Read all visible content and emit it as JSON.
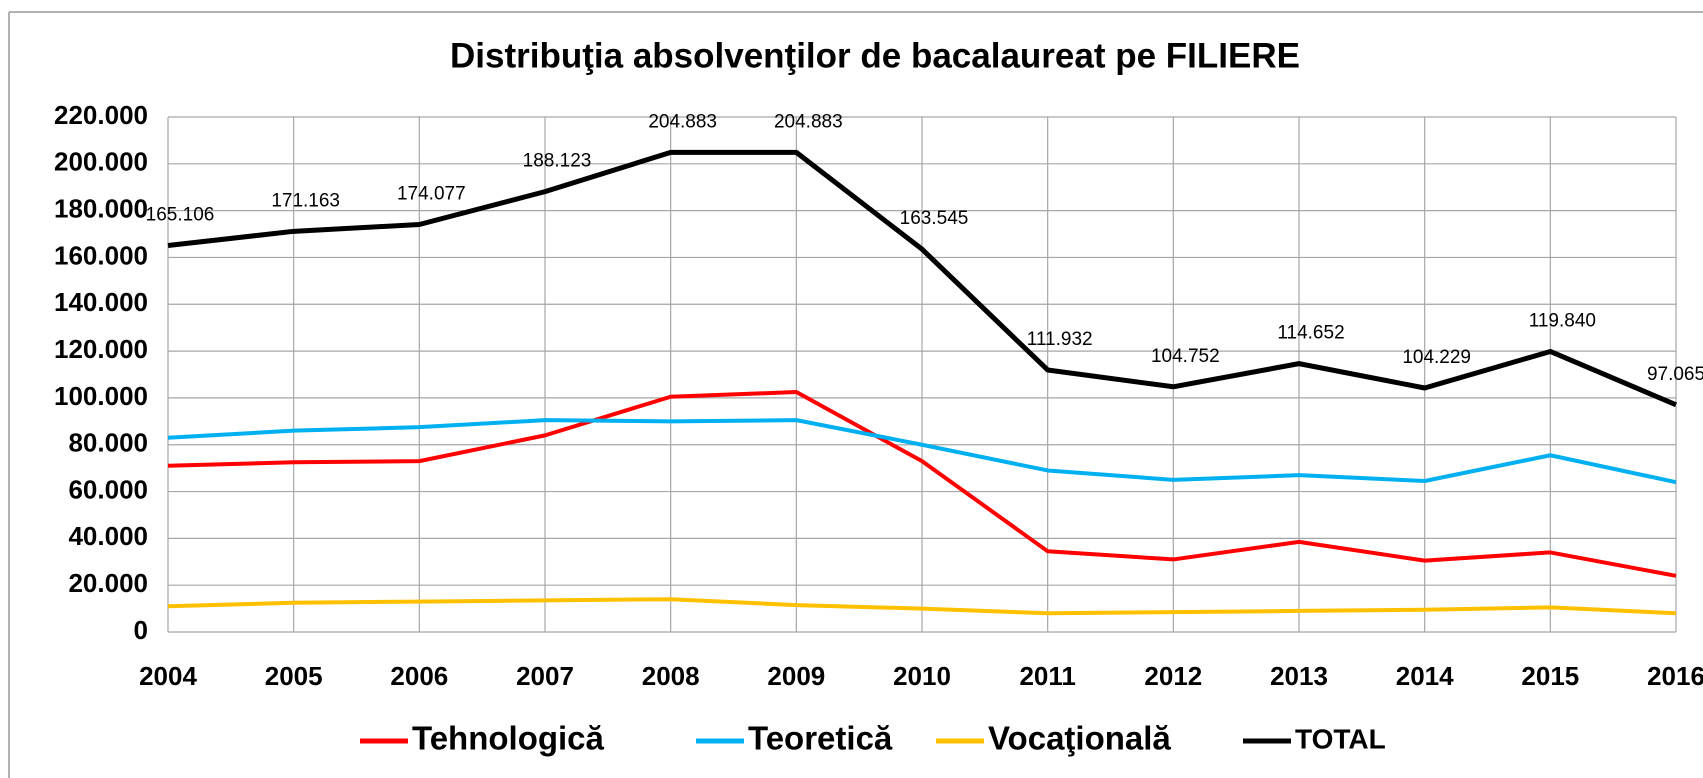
{
  "chart_data": {
    "type": "line",
    "title": "Distribuţia absolvenţilor de bacalaureat pe FILIERE",
    "categories": [
      "2004",
      "2005",
      "2006",
      "2007",
      "2008",
      "2009",
      "2010",
      "2011",
      "2012",
      "2013",
      "2014",
      "2015",
      "2016"
    ],
    "series": [
      {
        "name": "Tehnologică",
        "color": "#ff0000",
        "values": [
          71000,
          72500,
          73000,
          84000,
          100500,
          102500,
          73000,
          34500,
          31000,
          38500,
          30500,
          34000,
          24000
        ]
      },
      {
        "name": "Teoretică",
        "color": "#00b0f0",
        "values": [
          83000,
          86000,
          87500,
          90500,
          90000,
          90500,
          80000,
          69000,
          65000,
          67000,
          64500,
          75500,
          64000
        ]
      },
      {
        "name": "Vocaţională",
        "color": "#ffc000",
        "values": [
          11000,
          12500,
          13000,
          13500,
          14000,
          11500,
          10000,
          8000,
          8500,
          9000,
          9500,
          10500,
          8000
        ]
      },
      {
        "name": "TOTAL",
        "color": "#000000",
        "values": [
          165106,
          171163,
          174077,
          188123,
          204883,
          204883,
          163545,
          111932,
          104752,
          114652,
          104229,
          119840,
          97065
        ],
        "value_labels": [
          "165.106",
          "171.163",
          "174.077",
          "188.123",
          "204.883",
          "204.883",
          "163.545",
          "111.932",
          "104.752",
          "114.652",
          "104.229",
          "119.840",
          "97.065"
        ]
      }
    ],
    "ylim": [
      0,
      220000
    ],
    "yticks": [
      0,
      {
        "value": 20000,
        "label": "20.000"
      },
      {
        "value": 40000,
        "label": "40.000"
      },
      {
        "value": 60000,
        "label": "60.000"
      },
      {
        "value": 80000,
        "label": "80.000"
      },
      {
        "value": 100000,
        "label": "100.000"
      },
      {
        "value": 120000,
        "label": "120.000"
      },
      {
        "value": 140000,
        "label": "140.000"
      },
      {
        "value": 160000,
        "label": "160.000"
      },
      {
        "value": 180000,
        "label": "180.000"
      },
      {
        "value": 200000,
        "label": "200.000"
      },
      {
        "value": 220000,
        "label": "220.000"
      }
    ],
    "grid": true,
    "legend": "bottom"
  }
}
